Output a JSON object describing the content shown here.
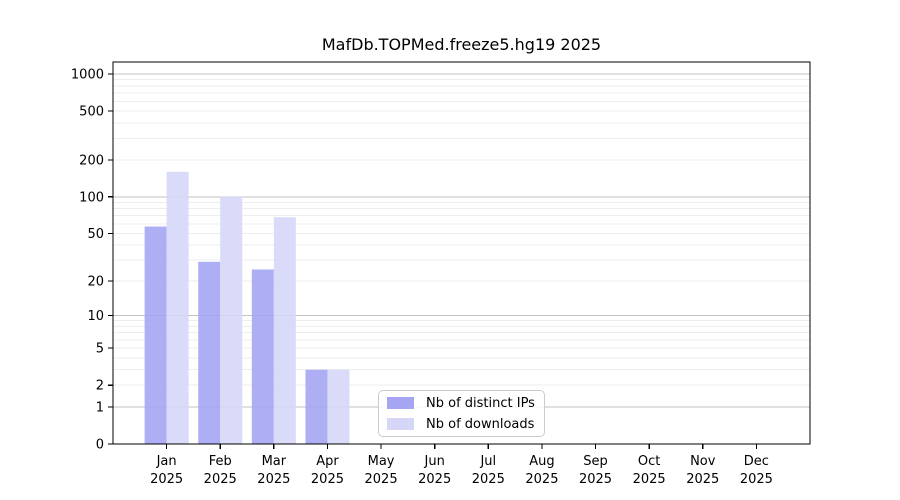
{
  "chart_data": {
    "type": "bar",
    "title": "MafDb.TOPMed.freeze5.hg19 2025",
    "categories": [
      "Jan 2025",
      "Feb 2025",
      "Mar 2025",
      "Apr 2025",
      "May 2025",
      "Jun 2025",
      "Jul 2025",
      "Aug 2025",
      "Sep 2025",
      "Oct 2025",
      "Nov 2025",
      "Dec 2025"
    ],
    "series": [
      {
        "name": "Nb of distinct IPs",
        "color": "#a5a5f3",
        "values": [
          57,
          29,
          25,
          3,
          0,
          0,
          0,
          0,
          0,
          0,
          0,
          0
        ]
      },
      {
        "name": "Nb of downloads",
        "color": "#d6d6f8",
        "values": [
          160,
          100,
          68,
          3,
          0,
          0,
          0,
          0,
          0,
          0,
          0,
          0
        ]
      }
    ],
    "yscale": "log1p",
    "yticks": [
      0,
      1,
      2,
      5,
      10,
      20,
      50,
      100,
      200,
      500,
      1000
    ],
    "ylim": [
      0,
      1250
    ],
    "xlabel": "",
    "ylabel": "",
    "grid": {
      "major_color": "#c2c2c2",
      "minor_color": "#ededed",
      "orientation": "horizontal"
    },
    "axis_color": "#000000",
    "legend_position": "bottom-center"
  }
}
